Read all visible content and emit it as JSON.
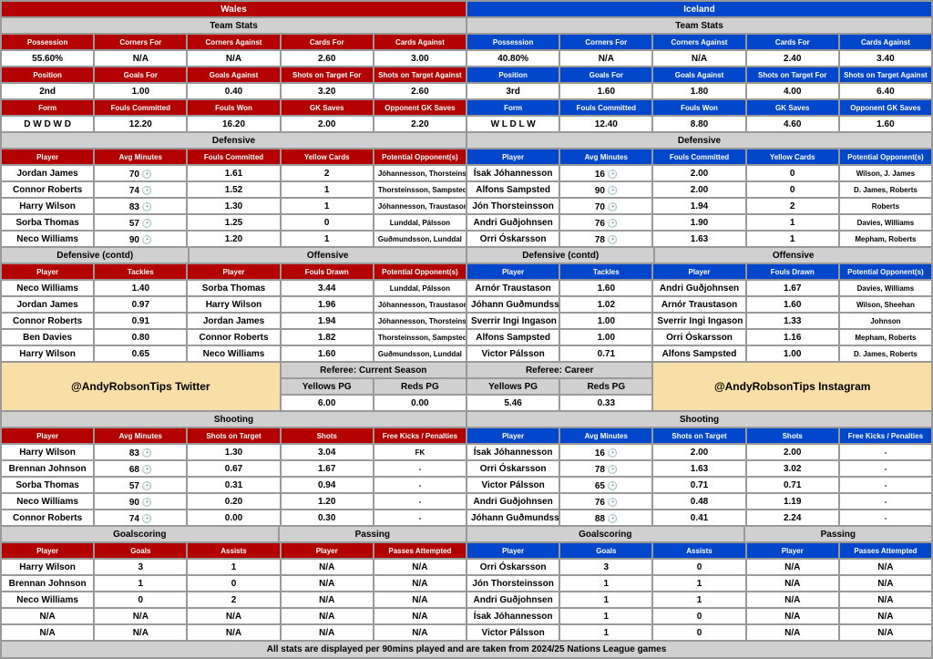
{
  "colors": {
    "red": "#b30000",
    "blue": "#0047cc",
    "grey": "#d0d0d0",
    "promo": "#f7dfa5",
    "border": "#999999",
    "white": "#ffffff"
  },
  "teamA": {
    "name": "Wales",
    "stats_hdr": "Team Stats",
    "row1h": [
      "Possession",
      "Corners For",
      "Corners Against",
      "Cards For",
      "Cards Against"
    ],
    "row1v": [
      "55.60%",
      "N/A",
      "N/A",
      "2.60",
      "3.00"
    ],
    "row2h": [
      "Position",
      "Goals For",
      "Goals Against",
      "Shots on Target For",
      "Shots on Target Against"
    ],
    "row2v": [
      "2nd",
      "1.00",
      "0.40",
      "3.20",
      "2.60"
    ],
    "row3h": [
      "Form",
      "Fouls Committed",
      "Fouls Won",
      "GK Saves",
      "Opponent GK Saves"
    ],
    "row3v": [
      "D W D W D",
      "12.20",
      "16.20",
      "2.00",
      "2.20"
    ],
    "def_hdr": "Defensive",
    "def_cols": [
      "Player",
      "Avg Minutes",
      "Fouls Committed",
      "Yellow Cards",
      "Potential Opponent(s)"
    ],
    "def": [
      [
        "Jordan James",
        "70",
        "1.61",
        "2",
        "Jóhannesson, Thorsteinsson"
      ],
      [
        "Connor Roberts",
        "74",
        "1.52",
        "1",
        "Thorsteinsson, Sampsted"
      ],
      [
        "Harry Wilson",
        "83",
        "1.30",
        "1",
        "Jóhannesson, Traustason"
      ],
      [
        "Sorba Thomas",
        "57",
        "1.25",
        "0",
        "Lunddal, Pálsson"
      ],
      [
        "Neco Williams",
        "90",
        "1.20",
        "1",
        "Guðmundsson, Lunddal"
      ]
    ],
    "defc_hdr": "Defensive (contd)",
    "off_hdr": "Offensive",
    "defc_cols": [
      "Player",
      "Tackles"
    ],
    "off_cols": [
      "Player",
      "Fouls Drawn",
      "Potential Opponent(s)"
    ],
    "defc": [
      [
        "Neco Williams",
        "1.40"
      ],
      [
        "Jordan James",
        "0.97"
      ],
      [
        "Connor Roberts",
        "0.91"
      ],
      [
        "Ben Davies",
        "0.80"
      ],
      [
        "Harry Wilson",
        "0.65"
      ]
    ],
    "off": [
      [
        "Sorba Thomas",
        "3.44",
        "Lunddal, Pálsson"
      ],
      [
        "Harry Wilson",
        "1.96",
        "Jóhannesson, Traustason"
      ],
      [
        "Jordan James",
        "1.94",
        "Jóhannesson, Thorsteinsson"
      ],
      [
        "Connor Roberts",
        "1.82",
        "Thorsteinsson, Sampsted"
      ],
      [
        "Neco Williams",
        "1.60",
        "Guðmundsson, Lunddal"
      ]
    ],
    "promo": "@AndyRobsonTips Twitter",
    "shoot_hdr": "Shooting",
    "shoot_cols": [
      "Player",
      "Avg Minutes",
      "Shots on Target",
      "Shots",
      "Free Kicks / Penalties"
    ],
    "shoot": [
      [
        "Harry Wilson",
        "83",
        "1.30",
        "3.04",
        "FK"
      ],
      [
        "Brennan Johnson",
        "68",
        "0.67",
        "1.67",
        "-"
      ],
      [
        "Sorba Thomas",
        "57",
        "0.31",
        "0.94",
        "-"
      ],
      [
        "Neco Williams",
        "90",
        "0.20",
        "1.20",
        "-"
      ],
      [
        "Connor Roberts",
        "74",
        "0.00",
        "0.30",
        "-"
      ]
    ],
    "goal_hdr": "Goalscoring",
    "pass_hdr": "Passing",
    "goal_cols": [
      "Player",
      "Goals",
      "Assists"
    ],
    "pass_cols": [
      "Player",
      "Passes Attempted"
    ],
    "goal": [
      [
        "Harry Wilson",
        "3",
        "1"
      ],
      [
        "Brennan Johnson",
        "1",
        "0"
      ],
      [
        "Neco Williams",
        "0",
        "2"
      ],
      [
        "N/A",
        "N/A",
        "N/A"
      ],
      [
        "N/A",
        "N/A",
        "N/A"
      ]
    ],
    "pass": [
      [
        "N/A",
        "N/A"
      ],
      [
        "N/A",
        "N/A"
      ],
      [
        "N/A",
        "N/A"
      ],
      [
        "N/A",
        "N/A"
      ],
      [
        "N/A",
        "N/A"
      ]
    ]
  },
  "teamB": {
    "name": "Iceland",
    "stats_hdr": "Team Stats",
    "row1h": [
      "Possession",
      "Corners For",
      "Corners Against",
      "Cards For",
      "Cards Against"
    ],
    "row1v": [
      "40.80%",
      "N/A",
      "N/A",
      "2.40",
      "3.40"
    ],
    "row2h": [
      "Position",
      "Goals For",
      "Goals Against",
      "Shots on Target For",
      "Shots on Target Against"
    ],
    "row2v": [
      "3rd",
      "1.60",
      "1.80",
      "4.00",
      "6.40"
    ],
    "row3h": [
      "Form",
      "Fouls Committed",
      "Fouls Won",
      "GK Saves",
      "Opponent GK Saves"
    ],
    "row3v": [
      "W L D L W",
      "12.40",
      "8.80",
      "4.60",
      "1.60"
    ],
    "def_hdr": "Defensive",
    "def_cols": [
      "Player",
      "Avg Minutes",
      "Fouls Committed",
      "Yellow Cards",
      "Potential Opponent(s)"
    ],
    "def": [
      [
        "Ísak Jóhannesson",
        "16",
        "2.00",
        "0",
        "Wilson, J. James"
      ],
      [
        "Alfons Sampsted",
        "90",
        "2.00",
        "0",
        "D. James, Roberts"
      ],
      [
        "Jón Thorsteinsson",
        "70",
        "1.94",
        "2",
        "Roberts"
      ],
      [
        "Andri Guðjohnsen",
        "76",
        "1.90",
        "1",
        "Davies, Williams"
      ],
      [
        "Orri Óskarsson",
        "78",
        "1.63",
        "1",
        "Mepham, Roberts"
      ]
    ],
    "defc_hdr": "Defensive (contd)",
    "off_hdr": "Offensive",
    "defc_cols": [
      "Player",
      "Tackles"
    ],
    "off_cols": [
      "Player",
      "Fouls Drawn",
      "Potential Opponent(s)"
    ],
    "defc": [
      [
        "Arnór Traustason",
        "1.60"
      ],
      [
        "Jóhann Guðmundsson",
        "1.02"
      ],
      [
        "Sverrir Ingi Ingason",
        "1.00"
      ],
      [
        "Alfons Sampsted",
        "1.00"
      ],
      [
        "Victor Pálsson",
        "0.71"
      ]
    ],
    "off": [
      [
        "Andri Guðjohnsen",
        "1.67",
        "Davies, Williams"
      ],
      [
        "Arnór Traustason",
        "1.60",
        "Wilson, Sheehan"
      ],
      [
        "Sverrir Ingi Ingason",
        "1.33",
        "Johnson"
      ],
      [
        "Orri Óskarsson",
        "1.16",
        "Mepham, Roberts"
      ],
      [
        "Alfons Sampsted",
        "1.00",
        "D. James, Roberts"
      ]
    ],
    "promo": "@AndyRobsonTips Instagram",
    "shoot_hdr": "Shooting",
    "shoot_cols": [
      "Player",
      "Avg Minutes",
      "Shots on Target",
      "Shots",
      "Free Kicks / Penalties"
    ],
    "shoot": [
      [
        "Ísak Jóhannesson",
        "16",
        "2.00",
        "2.00",
        "-"
      ],
      [
        "Orri Óskarsson",
        "78",
        "1.63",
        "3.02",
        "-"
      ],
      [
        "Victor Pálsson",
        "65",
        "0.71",
        "0.71",
        "-"
      ],
      [
        "Andri Guðjohnsen",
        "76",
        "0.48",
        "1.19",
        "-"
      ],
      [
        "Jóhann Guðmundsson",
        "88",
        "0.41",
        "2.24",
        "-"
      ]
    ],
    "goal_hdr": "Goalscoring",
    "pass_hdr": "Passing",
    "goal_cols": [
      "Player",
      "Goals",
      "Assists"
    ],
    "pass_cols": [
      "Player",
      "Passes Attempted"
    ],
    "goal": [
      [
        "Orri Óskarsson",
        "3",
        "0"
      ],
      [
        "Jón Thorsteinsson",
        "1",
        "1"
      ],
      [
        "Andri Guðjohnsen",
        "1",
        "1"
      ],
      [
        "Ísak Jóhannesson",
        "1",
        "0"
      ],
      [
        "Victor Pálsson",
        "1",
        "0"
      ]
    ],
    "pass": [
      [
        "N/A",
        "N/A"
      ],
      [
        "N/A",
        "N/A"
      ],
      [
        "N/A",
        "N/A"
      ],
      [
        "N/A",
        "N/A"
      ],
      [
        "N/A",
        "N/A"
      ]
    ]
  },
  "ref": {
    "cur_hdr": "Referee: Current Season",
    "car_hdr": "Referee: Career",
    "cols": [
      "Yellows PG",
      "Reds PG"
    ],
    "cur": [
      "6.00",
      "0.00"
    ],
    "car": [
      "5.46",
      "0.33"
    ]
  },
  "footer": "All stats are displayed per 90mins played and are taken from 2024/25 Nations League games"
}
